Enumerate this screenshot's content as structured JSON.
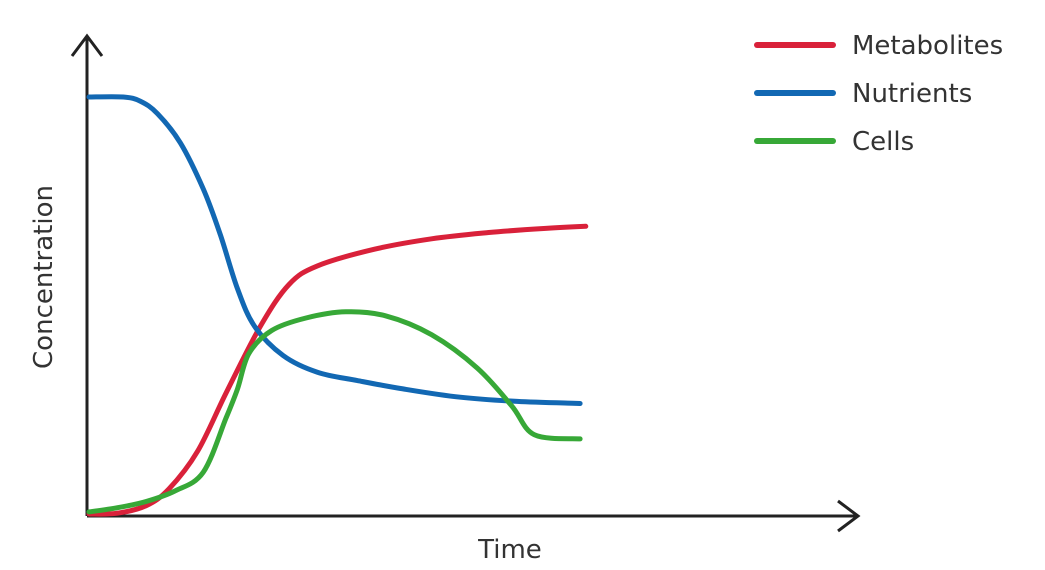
{
  "chart_data": {
    "type": "line",
    "title": "",
    "xlabel": "Time",
    "ylabel": "Concentration",
    "xlim": [
      0,
      100
    ],
    "ylim": [
      0,
      100
    ],
    "grid": false,
    "legend_position": "top-right",
    "series": [
      {
        "name": "Metabolites",
        "color": "#d9213a",
        "points": [
          [
            0,
            0
          ],
          [
            5,
            0.2
          ],
          [
            10,
            2
          ],
          [
            14,
            6
          ],
          [
            19,
            15
          ],
          [
            24,
            29
          ],
          [
            30,
            45
          ],
          [
            35,
            55
          ],
          [
            40,
            59.5
          ],
          [
            50,
            63.5
          ],
          [
            60,
            66
          ],
          [
            70,
            67.5
          ],
          [
            80,
            68.5
          ],
          [
            87,
            69
          ]
        ]
      },
      {
        "name": "Nutrients",
        "color": "#1268b3",
        "points": [
          [
            0,
            100
          ],
          [
            6,
            100
          ],
          [
            9,
            99
          ],
          [
            12,
            96
          ],
          [
            16,
            89
          ],
          [
            20,
            78
          ],
          [
            23,
            67
          ],
          [
            26,
            54
          ],
          [
            29,
            45
          ],
          [
            34,
            38
          ],
          [
            40,
            34
          ],
          [
            47,
            32
          ],
          [
            55,
            30
          ],
          [
            65,
            28
          ],
          [
            75,
            27
          ],
          [
            86,
            26.5
          ]
        ]
      },
      {
        "name": "Cells",
        "color": "#37a837",
        "points": [
          [
            0,
            0.5
          ],
          [
            5,
            1.5
          ],
          [
            10,
            3
          ],
          [
            15,
            5.5
          ],
          [
            20,
            10
          ],
          [
            24,
            23
          ],
          [
            26,
            30
          ],
          [
            28,
            38.5
          ],
          [
            32,
            44
          ],
          [
            38,
            47
          ],
          [
            45,
            48.5
          ],
          [
            52,
            47.5
          ],
          [
            60,
            43
          ],
          [
            68,
            35
          ],
          [
            74,
            26
          ],
          [
            78,
            19
          ],
          [
            86,
            18
          ]
        ]
      }
    ]
  }
}
